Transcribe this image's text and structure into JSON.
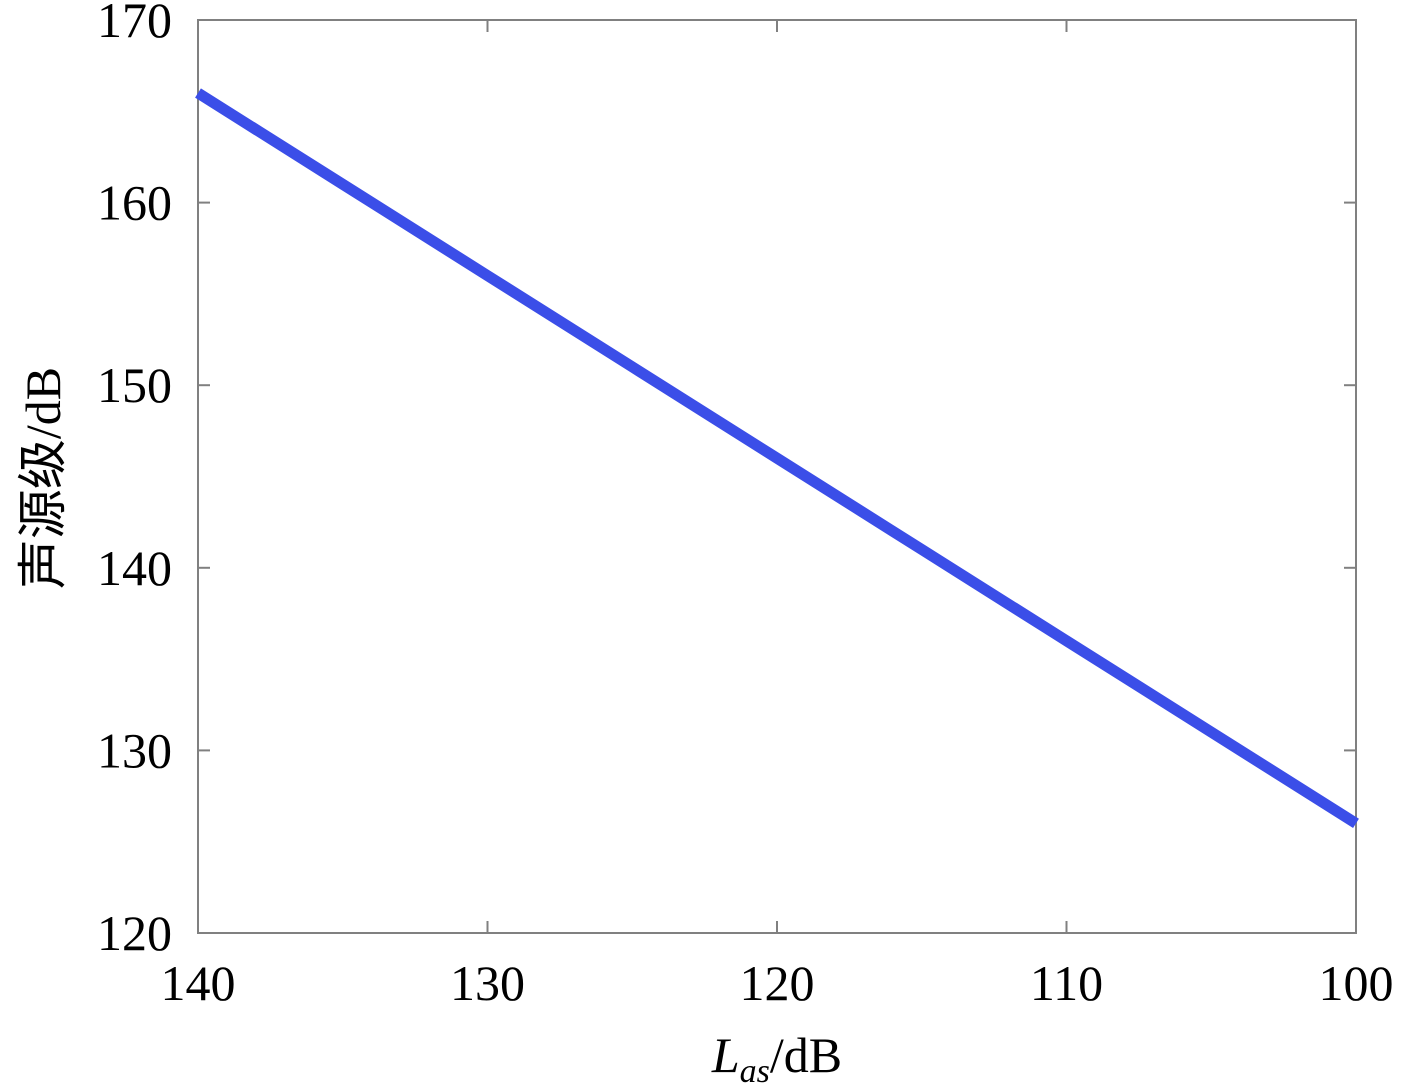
{
  "chart_data": {
    "type": "line",
    "title": "",
    "xlabel": {
      "main": "L",
      "sub": "as",
      "unit": "/dB"
    },
    "ylabel": "声源级/dB",
    "xlim": [
      140,
      100
    ],
    "x_reversed": true,
    "ylim": [
      120,
      170
    ],
    "xticks": [
      "140",
      "130",
      "120",
      "110",
      "100"
    ],
    "yticks": [
      "120",
      "130",
      "140",
      "150",
      "160",
      "170"
    ],
    "grid": false,
    "line_color": "#3b4ee8",
    "series": [
      {
        "x": [
          140,
          135,
          130,
          125,
          120,
          115,
          110,
          105,
          100
        ],
        "y": [
          166,
          161,
          156,
          151,
          146,
          141,
          136,
          131,
          126
        ]
      }
    ]
  }
}
